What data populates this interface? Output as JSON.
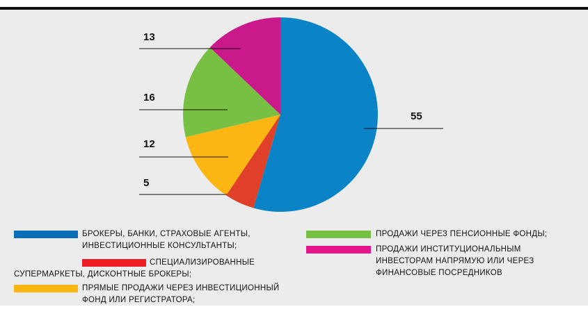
{
  "chart_data": {
    "type": "pie",
    "categories": [
      "БРОКЕРЫ, БАНКИ, СТРАХОВЫЕ АГЕНТЫ, ИНВЕСТИЦИОННЫЕ КОНСУЛЬТАНТЫ;",
      "СПЕЦИАЛИЗИРОВАННЫЕ СУПЕРМАРКЕТЫ, ДИСКОНТНЫЕ БРОКЕРЫ;",
      "ПРЯМЫЕ ПРОДАЖИ ЧЕРЕЗ ИНВЕСТИЦИОННЫЙ ФОНД ИЛИ РЕГИСТРАТОРА;",
      "ПРОДАЖИ ЧЕРЕЗ ПЕНСИОННЫЕ ФОНДЫ;",
      "ПРОДАЖИ ИНСТИТУЦИОНАЛЬНЫМ ИНВЕСТОРАМ НАПРЯМУЮ ИЛИ ЧЕРЕЗ ФИНАНСОВЫЕ ПОСРЕДНИКОВ"
    ],
    "values": [
      55,
      5,
      12,
      16,
      13
    ],
    "colors": [
      "#0a84c6",
      "#e0402a",
      "#fbb614",
      "#77c043",
      "#c9198a"
    ],
    "legend_colors": [
      "#0a6fb4",
      "#ee1c24",
      "#fbb614",
      "#77c043",
      "#e5168c"
    ]
  }
}
